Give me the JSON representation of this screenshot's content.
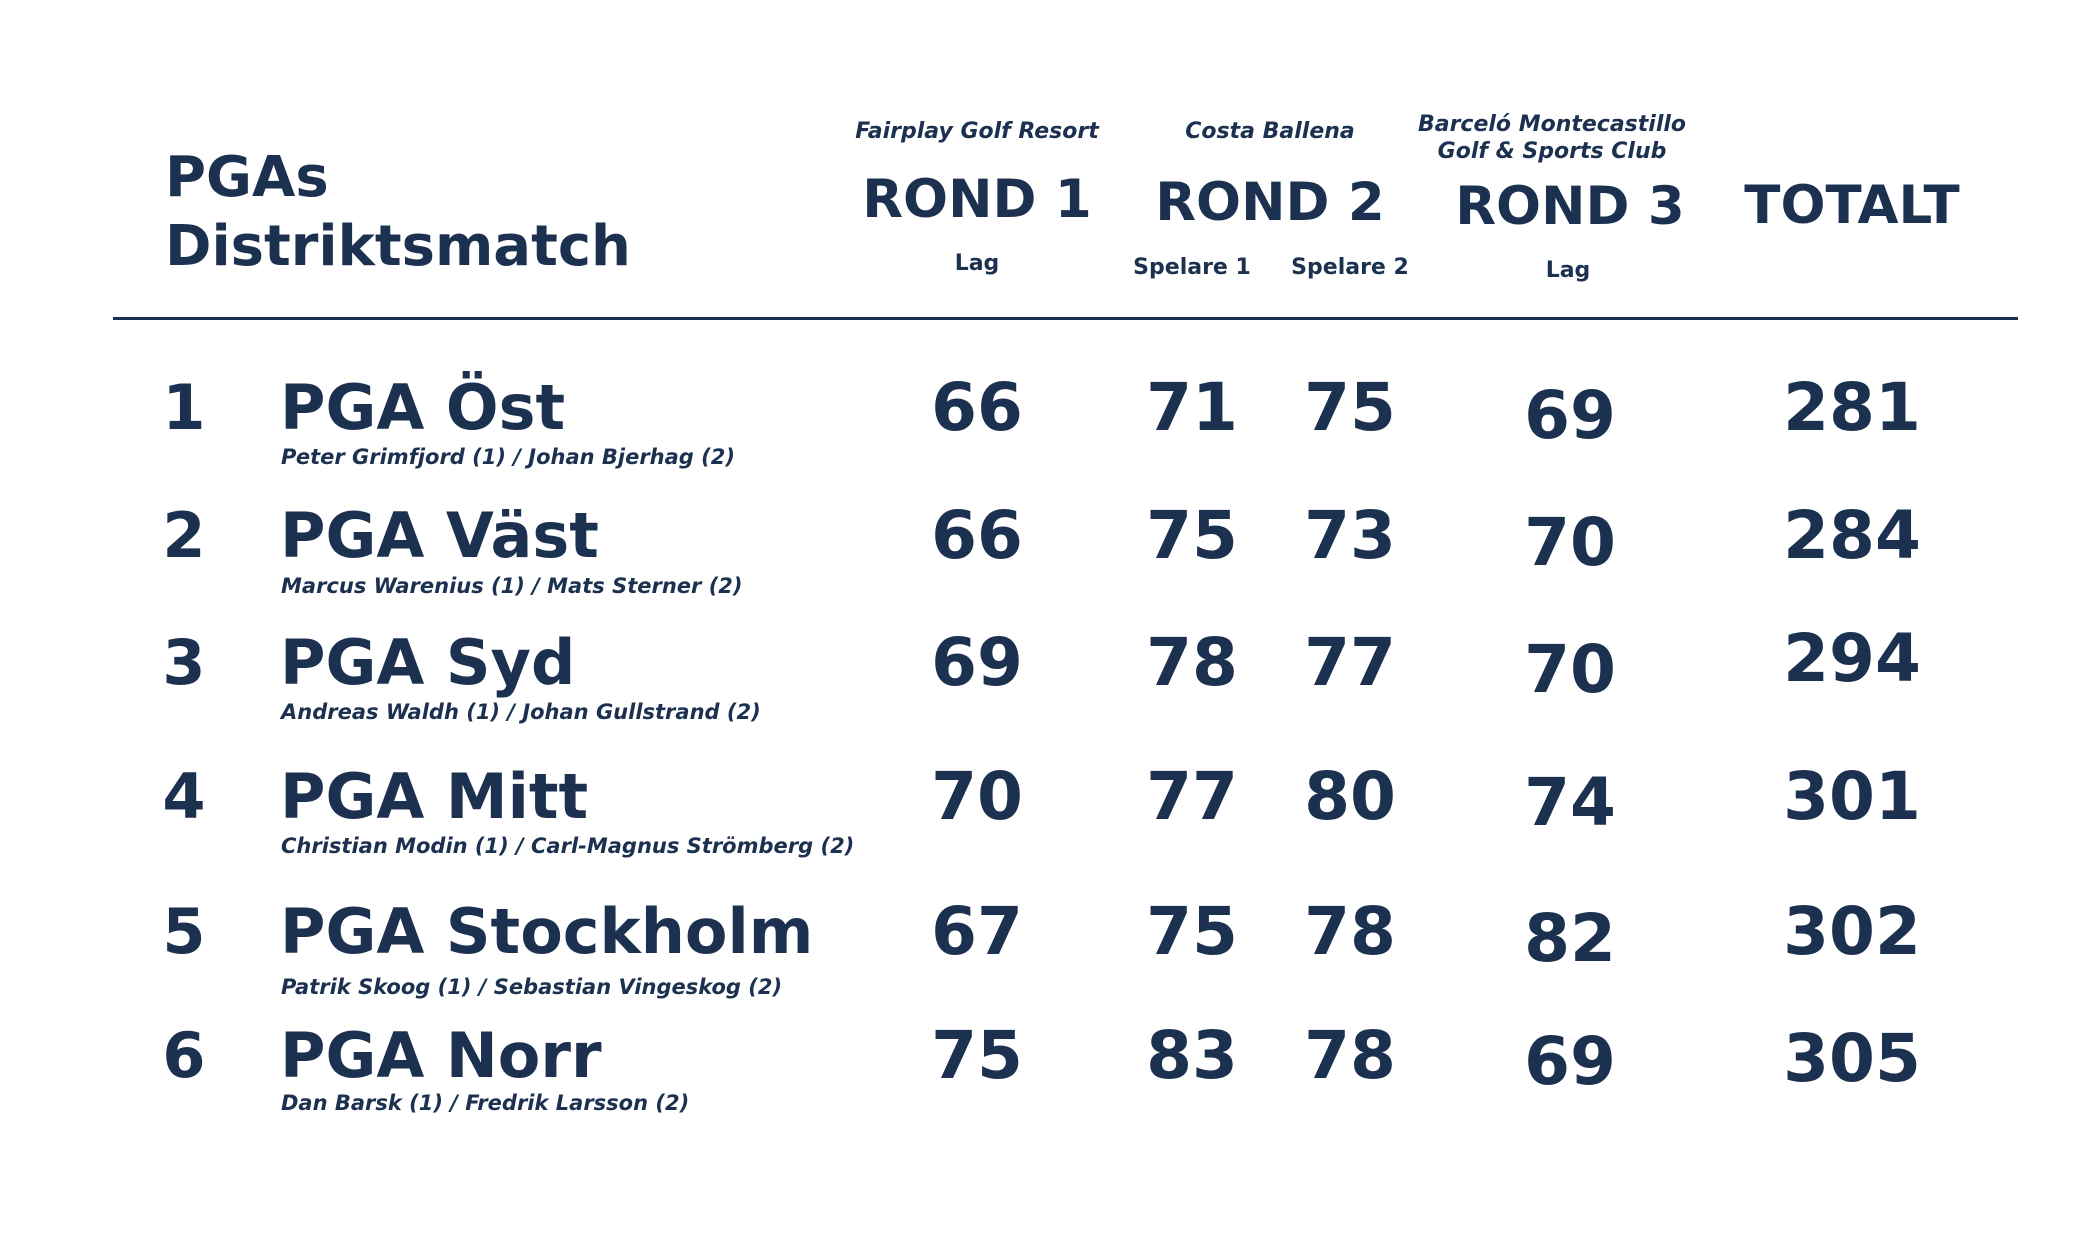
{
  "header": {
    "title_line1": "PGAs",
    "title_line2": "Distriktsmatch"
  },
  "columns": {
    "round1": {
      "venue": "Fairplay Golf Resort",
      "title": "ROND 1",
      "sublabel": "Lag"
    },
    "round2": {
      "venue": "Costa Ballena",
      "title": "ROND 2",
      "sublabel_player1": "Spelare 1",
      "sublabel_player2": "Spelare 2"
    },
    "round3": {
      "venue_line1": "Barceló Montecastillo",
      "venue_line2": "Golf & Sports Club",
      "title": "ROND 3",
      "sublabel": "Lag"
    },
    "total": {
      "title": "TOTALT"
    }
  },
  "rows": [
    {
      "rank": "1",
      "team": "PGA Öst",
      "players": "Peter Grimfjord (1) / Johan Bjerhag (2)",
      "r1": "66",
      "r2_p1": "71",
      "r2_p2": "75",
      "r3": "69",
      "total": "281"
    },
    {
      "rank": "2",
      "team": "PGA Väst",
      "players": "Marcus Warenius (1) / Mats Sterner (2)",
      "r1": "66",
      "r2_p1": "75",
      "r2_p2": "73",
      "r3": "70",
      "total": "284"
    },
    {
      "rank": "3",
      "team": "PGA Syd",
      "players": "Andreas Waldh (1) / Johan Gullstrand (2)",
      "r1": "69",
      "r2_p1": "78",
      "r2_p2": "77",
      "r3": "70",
      "total": "294"
    },
    {
      "rank": "4",
      "team": "PGA Mitt",
      "players": "Christian Modin (1) / Carl-Magnus Strömberg (2)",
      "r1": "70",
      "r2_p1": "77",
      "r2_p2": "80",
      "r3": "74",
      "total": "301"
    },
    {
      "rank": "5",
      "team": "PGA Stockholm",
      "players": "Patrik Skoog (1) / Sebastian Vingeskog (2)",
      "r1": "67",
      "r2_p1": "75",
      "r2_p2": "78",
      "r3": "82",
      "total": "302"
    },
    {
      "rank": "6",
      "team": "PGA Norr",
      "players": "Dan Barsk (1) / Fredrik Larsson (2)",
      "r1": "75",
      "r2_p1": "83",
      "r2_p2": "78",
      "r3": "69",
      "total": "305"
    }
  ],
  "colors": {
    "text": "#1c3150",
    "background": "#ffffff"
  }
}
